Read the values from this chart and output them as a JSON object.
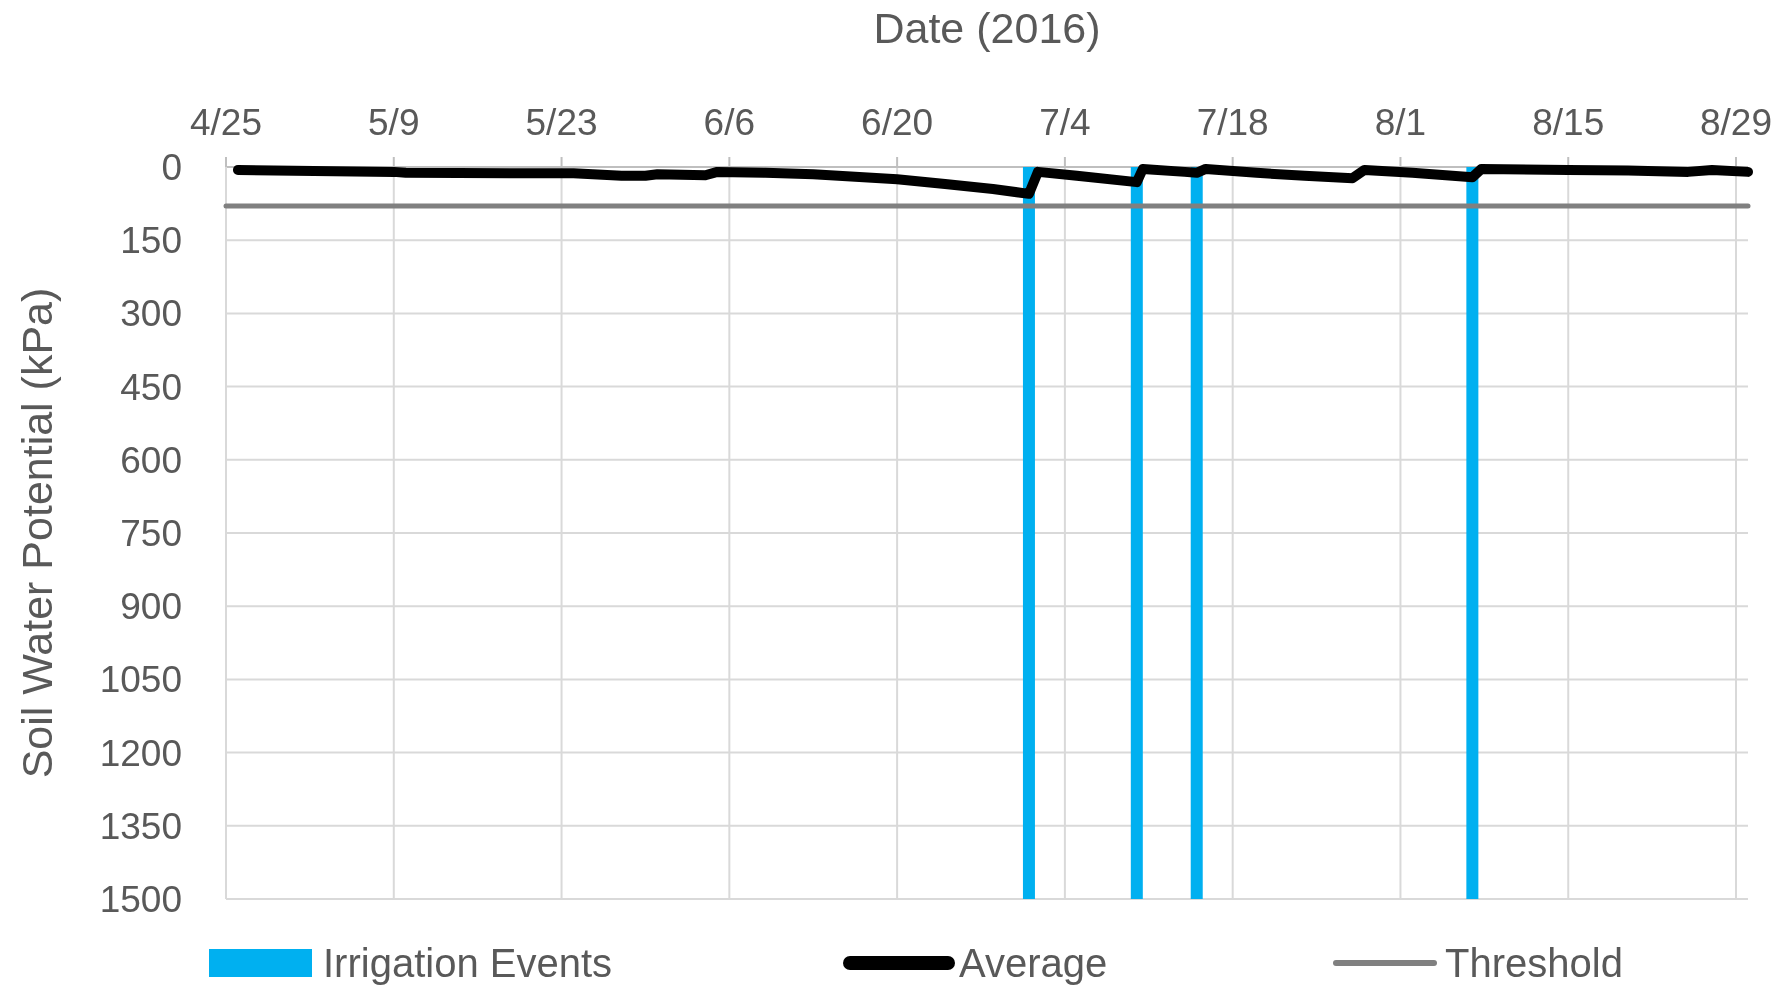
{
  "chart_data": {
    "type": "line",
    "xlabel": "Date (2016)",
    "ylabel": "Soil Water Potential (kPa)",
    "xlim": [
      "2016-04-25",
      "2016-08-30"
    ],
    "xticks": [
      {
        "value": "2016-04-25",
        "label": "4/25"
      },
      {
        "value": "2016-05-09",
        "label": "5/9"
      },
      {
        "value": "2016-05-23",
        "label": "5/23"
      },
      {
        "value": "2016-06-06",
        "label": "6/6"
      },
      {
        "value": "2016-06-20",
        "label": "6/20"
      },
      {
        "value": "2016-07-04",
        "label": "7/4"
      },
      {
        "value": "2016-07-18",
        "label": "7/18"
      },
      {
        "value": "2016-08-01",
        "label": "8/1"
      },
      {
        "value": "2016-08-15",
        "label": "8/15"
      },
      {
        "value": "2016-08-29",
        "label": "8/29"
      }
    ],
    "ylim": [
      1500,
      0
    ],
    "yticks": [
      0,
      150,
      300,
      450,
      600,
      750,
      900,
      1050,
      1200,
      1350,
      1500
    ],
    "grid": true,
    "legend": "bottom",
    "series": [
      {
        "name": "Irrigation Events",
        "type": "bar",
        "color": "#00b0f0",
        "x": [
          "2016-07-01",
          "2016-07-10",
          "2016-07-15",
          "2016-08-07"
        ],
        "values": [
          1500,
          1500,
          1500,
          1500
        ]
      },
      {
        "name": "Average",
        "color": "#000000",
        "x": [
          "2016-04-26",
          "2016-05-09",
          "2016-05-10",
          "2016-05-24",
          "2016-05-28",
          "2016-05-30",
          "2016-05-31",
          "2016-06-04",
          "2016-06-05",
          "2016-06-09",
          "2016-06-13",
          "2016-06-20",
          "2016-06-24",
          "2016-06-28",
          "2016-07-01",
          "2016-07-01T18:00",
          "2016-07-05",
          "2016-07-10",
          "2016-07-10T12:00",
          "2016-07-14",
          "2016-07-15",
          "2016-07-15T18:00",
          "2016-07-20",
          "2016-07-24",
          "2016-07-28",
          "2016-07-29",
          "2016-08-02",
          "2016-08-07",
          "2016-08-07T18:00",
          "2016-08-15",
          "2016-08-20",
          "2016-08-25",
          "2016-08-27",
          "2016-08-30"
        ],
        "values": [
          6,
          10,
          12,
          13,
          18,
          18,
          15,
          17,
          10,
          12,
          15,
          25,
          35,
          45,
          55,
          10,
          18,
          31,
          4,
          10,
          12,
          4,
          12,
          18,
          23,
          6,
          12,
          21,
          4,
          6,
          7,
          10,
          6,
          10
        ]
      },
      {
        "name": "Threshold",
        "color": "#808080",
        "x": [
          "2016-04-25",
          "2016-08-30"
        ],
        "values": [
          80,
          80
        ]
      }
    ]
  }
}
